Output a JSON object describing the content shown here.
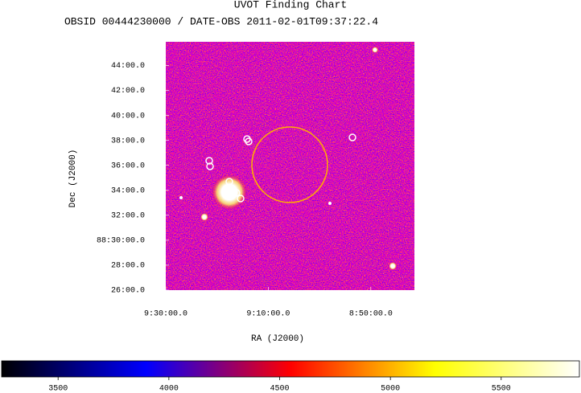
{
  "chart_data": {
    "type": "image",
    "title": "UVOT Finding Chart",
    "subtitle": "OBSID 00444230000 / DATE-OBS 2011-02-01T09:37:22.4",
    "xlabel": "RA (J2000)",
    "ylabel": "Dec (J2000)",
    "xlim": [
      570,
      521.5
    ],
    "xticks": [
      {
        "value": 570,
        "label": "9:30:00.0"
      },
      {
        "value": 550,
        "label": "9:10:00.0"
      },
      {
        "value": 530,
        "label": "8:50:00.0"
      }
    ],
    "ylim": [
      26,
      45.9
    ],
    "yticks": [
      {
        "value": 26,
        "label": "26:00.0"
      },
      {
        "value": 28,
        "label": "28:00.0"
      },
      {
        "value": 30,
        "label": "88:30:00.0"
      },
      {
        "value": 32,
        "label": "32:00.0"
      },
      {
        "value": 34,
        "label": "34:00.0"
      },
      {
        "value": 36,
        "label": "36:00.0"
      },
      {
        "value": 38,
        "label": "38:00.0"
      },
      {
        "value": 40,
        "label": "40:00.0"
      },
      {
        "value": 42,
        "label": "42:00.0"
      },
      {
        "value": 44,
        "label": "44:00.0"
      }
    ],
    "colorbar": {
      "clim": [
        3245,
        5853
      ],
      "ticks": [
        3500,
        4000,
        4500,
        5000,
        5500
      ],
      "colors": [
        "#000000",
        "#0000ff",
        "#ff0000",
        "#ffff00",
        "#ffffff"
      ]
    }
  }
}
